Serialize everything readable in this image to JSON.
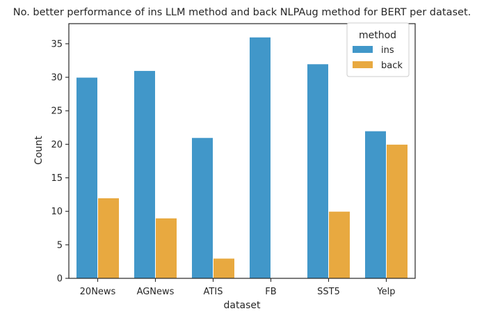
{
  "chart_data": {
    "type": "bar",
    "title": "No. better performance of ins LLM method and back NLPAug method for BERT per dataset.",
    "xlabel": "dataset",
    "ylabel": "Count",
    "categories": [
      "20News",
      "AGNews",
      "ATIS",
      "FB",
      "SST5",
      "Yelp"
    ],
    "series": [
      {
        "name": "ins",
        "values": [
          30,
          31,
          21,
          36,
          32,
          22
        ],
        "color": "#4197C9"
      },
      {
        "name": "back",
        "values": [
          12,
          9,
          3,
          0,
          10,
          20
        ],
        "color": "#E8A940"
      }
    ],
    "ylim": [
      0,
      38
    ],
    "yticks": [
      0,
      5,
      10,
      15,
      20,
      25,
      30,
      35
    ],
    "legend": {
      "title": "method",
      "placement": "top-right"
    },
    "grid": false
  }
}
